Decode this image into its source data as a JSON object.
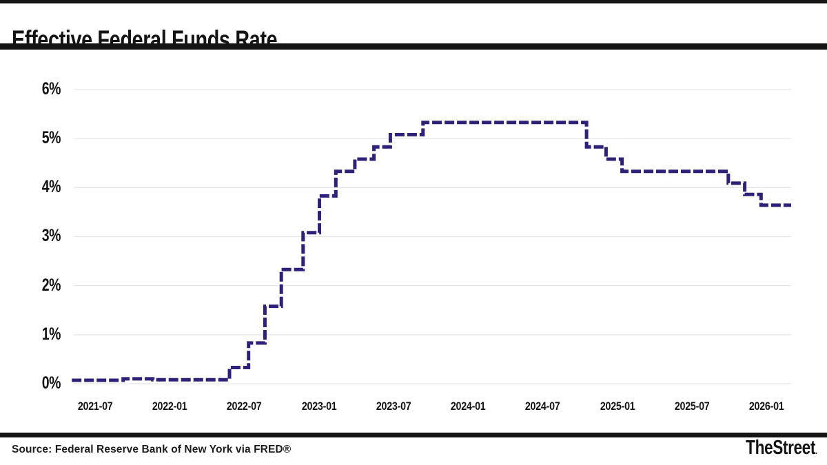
{
  "header": {
    "title": "Effective Federal Funds Rate"
  },
  "footer": {
    "source": "Source: Federal Reserve Bank of New York via FRED®",
    "brand": "TheStreet",
    "brand_suffix": "."
  },
  "colors": {
    "line": "#2d2178",
    "gridline": "#e5e5e5",
    "bars": "#141414"
  },
  "chart_data": {
    "type": "line",
    "subtype": "step",
    "line_style": "dashed",
    "title": "Effective Federal Funds Rate",
    "xlabel": "",
    "ylabel": "",
    "unit": "percent",
    "grid": "horizontal-only",
    "legend": "none",
    "ylim": [
      0,
      6.3
    ],
    "y_tick_labels": [
      "6%",
      "5%",
      "4%",
      "3%",
      "2%",
      "1%",
      "0%"
    ],
    "x_tick_labels": [
      "2021-07",
      "2022-01",
      "2022-07",
      "2023-01",
      "2023-07",
      "2024-01",
      "2024-07",
      "2025-01",
      "2025-07",
      "2026-01"
    ],
    "series": [
      {
        "name": "Effective Federal Funds Rate",
        "points": [
          [
            "2021-02-05",
            0.07
          ],
          [
            "2021-06-17",
            0.1
          ],
          [
            "2021-09-01",
            0.08
          ],
          [
            "2022-03-17",
            0.33
          ],
          [
            "2022-05-05",
            0.83
          ],
          [
            "2022-06-16",
            1.58
          ],
          [
            "2022-07-28",
            2.33
          ],
          [
            "2022-09-22",
            3.08
          ],
          [
            "2022-11-03",
            3.83
          ],
          [
            "2022-12-15",
            4.33
          ],
          [
            "2023-02-02",
            4.58
          ],
          [
            "2023-03-23",
            4.83
          ],
          [
            "2023-05-04",
            5.08
          ],
          [
            "2023-07-27",
            5.33
          ],
          [
            "2024-09-19",
            4.83
          ],
          [
            "2024-11-08",
            4.58
          ],
          [
            "2024-12-19",
            4.33
          ],
          [
            "2025-09-18",
            4.09
          ],
          [
            "2025-10-30",
            3.86
          ],
          [
            "2025-12-11",
            3.64
          ],
          [
            "2026-03-01",
            3.64
          ]
        ]
      }
    ]
  }
}
